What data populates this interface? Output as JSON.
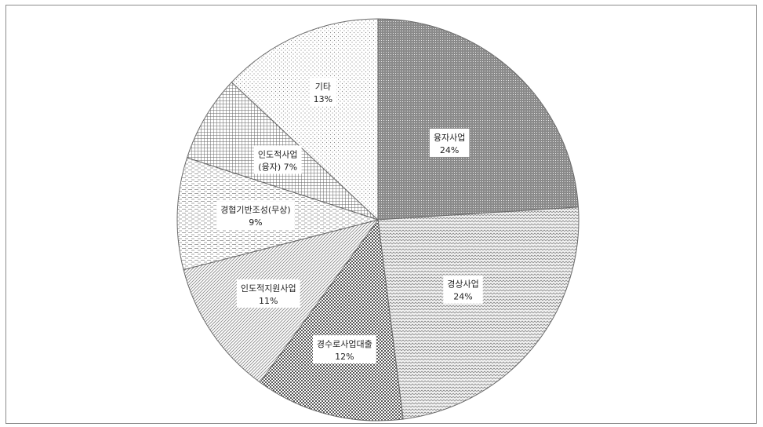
{
  "chart_data": {
    "type": "pie",
    "start_angle_deg": 0,
    "direction": "clockwise",
    "slices": [
      {
        "label": "융자사업",
        "value": 24,
        "value_label": "24%",
        "pattern": "dense-dots"
      },
      {
        "label": "경상사업",
        "value": 24,
        "value_label": "24%",
        "pattern": "zigzag"
      },
      {
        "label": "경수로사업대출",
        "value": 12,
        "value_label": "12%",
        "pattern": "checker"
      },
      {
        "label": "인도적지원사업",
        "value": 11,
        "value_label": "11%",
        "pattern": "diagonal"
      },
      {
        "label": "경협기반조성(무상)",
        "value": 9,
        "value_label": "9%",
        "pattern": "dashed-horizontal"
      },
      {
        "label": "인도적사업\n(융자) 7%",
        "value": 7,
        "value_label": "",
        "pattern": "grid"
      },
      {
        "label": "기타",
        "value": 13,
        "value_label": "13%",
        "pattern": "sparse-dots"
      }
    ]
  }
}
